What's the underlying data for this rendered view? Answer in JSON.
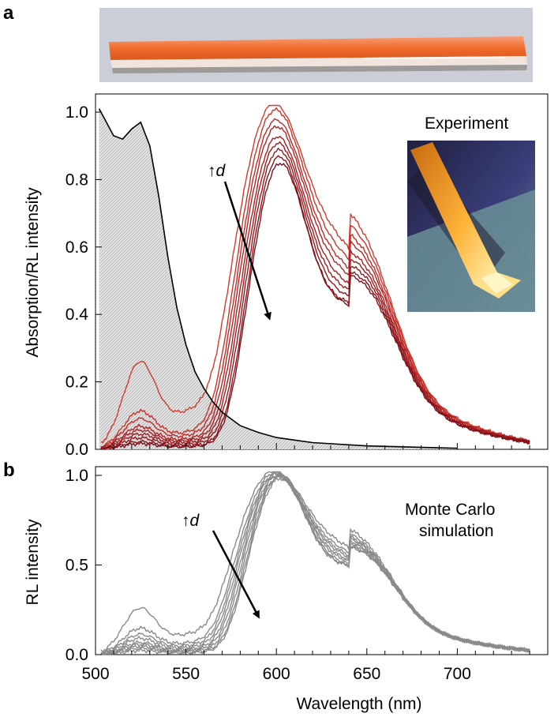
{
  "panels": {
    "a": "a",
    "b": "b"
  },
  "chart_data": [
    {
      "panel": "a",
      "type": "line",
      "title": "",
      "xlabel": "",
      "ylabel": "Absorption/RL intensity",
      "xlim": [
        500,
        750
      ],
      "ylim": [
        0,
        1.05
      ],
      "yticks": [
        "0.0",
        "0.2",
        "0.4",
        "0.6",
        "0.8",
        "1.0"
      ],
      "grid": false,
      "annotations": {
        "inset_label": "Experiment",
        "arrow_label_prefix": "↑",
        "arrow_label_var": "d"
      },
      "absorption": {
        "x": [
          502,
          505,
          510,
          515,
          520,
          525,
          530,
          535,
          540,
          545,
          550,
          555,
          560,
          565,
          570,
          580,
          590,
          600,
          620,
          650,
          700
        ],
        "y": [
          1.01,
          0.98,
          0.93,
          0.92,
          0.95,
          0.97,
          0.9,
          0.75,
          0.57,
          0.42,
          0.31,
          0.23,
          0.18,
          0.14,
          0.11,
          0.07,
          0.05,
          0.035,
          0.02,
          0.01,
          0.003
        ]
      },
      "rl_series": [
        {
          "peak": 1.0,
          "shift": -8,
          "tail": 0.23
        },
        {
          "peak": 0.98,
          "shift": -6,
          "tail": 0.1
        },
        {
          "peak": 0.95,
          "shift": -5,
          "tail": 0.08
        },
        {
          "peak": 0.93,
          "shift": -4,
          "tail": 0.06
        },
        {
          "peak": 0.9,
          "shift": -3,
          "tail": 0.05
        },
        {
          "peak": 0.88,
          "shift": -2,
          "tail": 0.04
        },
        {
          "peak": 0.86,
          "shift": -1,
          "tail": 0.03
        },
        {
          "peak": 0.84,
          "shift": 0,
          "tail": 0.02
        },
        {
          "peak": 0.82,
          "shift": 1,
          "tail": 0.015
        }
      ]
    },
    {
      "panel": "b",
      "type": "line",
      "title": "",
      "xlabel": "Wavelength (nm)",
      "ylabel": "RL intensity",
      "xlim": [
        500,
        750
      ],
      "ylim": [
        0,
        1.05
      ],
      "xticks": [
        "500",
        "550",
        "600",
        "650",
        "700"
      ],
      "yticks": [
        "0.0",
        "0.5",
        "1.0"
      ],
      "grid": false,
      "annotations": {
        "label_line1": "Monte Carlo",
        "label_line2": "simulation",
        "arrow_label_prefix": "↑",
        "arrow_label_var": "d"
      },
      "rl_series": [
        {
          "peak": 1.0,
          "shift": -8,
          "tail": 0.23
        },
        {
          "peak": 0.99,
          "shift": -6,
          "tail": 0.13
        },
        {
          "peak": 0.98,
          "shift": -5,
          "tail": 0.1
        },
        {
          "peak": 0.98,
          "shift": -4,
          "tail": 0.08
        },
        {
          "peak": 0.97,
          "shift": -3,
          "tail": 0.06
        },
        {
          "peak": 0.97,
          "shift": -2,
          "tail": 0.05
        },
        {
          "peak": 0.96,
          "shift": -1,
          "tail": 0.04
        },
        {
          "peak": 0.96,
          "shift": 0,
          "tail": 0.03
        },
        {
          "peak": 0.95,
          "shift": 1,
          "tail": 0.02
        }
      ]
    }
  ],
  "colors": {
    "rl_experiment": [
      "#d43a2a",
      "#c8322a",
      "#bd2b28",
      "#b32525",
      "#a82022",
      "#9e1c20",
      "#93181d",
      "#88141b",
      "#7d1018"
    ],
    "simulation": "#8a8a8a",
    "absorption_line": "#000000",
    "absorption_fill": "#cfcfcf",
    "rod_orange": "#f27a3a",
    "rod_glow": "#ffb23a",
    "photo_bg_dark": "#23244a"
  }
}
